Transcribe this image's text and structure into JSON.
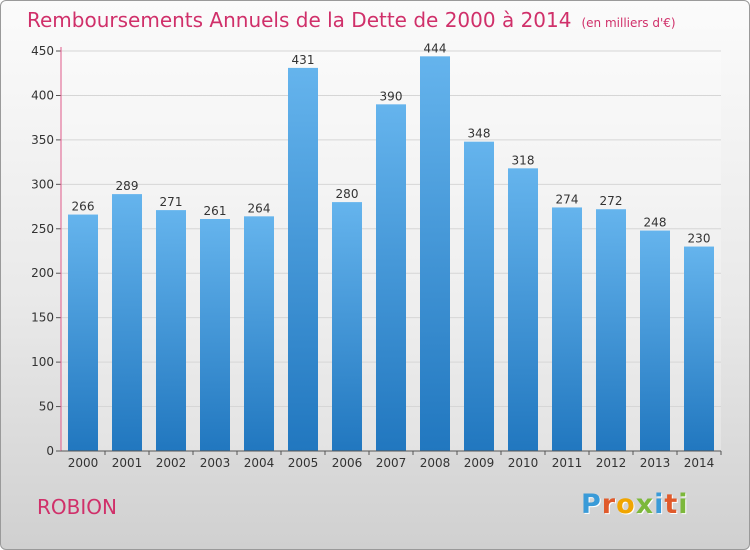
{
  "header": {
    "title": "Remboursements Annuels de la Dette de 2000 à 2014",
    "unit": "(en milliers d'€)"
  },
  "footer": {
    "commune": "ROBION",
    "logo_text": "Proxiti",
    "logo_colors": [
      "#3a9bd8",
      "#e05a2b",
      "#f0a500",
      "#7cb83a",
      "#3a9bd8",
      "#e05a2b",
      "#7cb83a"
    ]
  },
  "colors": {
    "title": "#d0306a",
    "bar_light": "#65b4ed",
    "bar_dark": "#2177bf",
    "axis": "#555555",
    "grid": "#d6d6d6",
    "axis_line": "#e05a8a"
  },
  "chart_data": {
    "type": "bar",
    "title": "Remboursements Annuels de la Dette de 2000 à 2014",
    "subtitle": "(en milliers d'€)",
    "xlabel": "",
    "ylabel": "",
    "categories": [
      "2000",
      "2001",
      "2002",
      "2003",
      "2004",
      "2005",
      "2006",
      "2007",
      "2008",
      "2009",
      "2010",
      "2011",
      "2012",
      "2013",
      "2014"
    ],
    "values": [
      266,
      289,
      271,
      261,
      264,
      431,
      280,
      390,
      444,
      348,
      318,
      274,
      272,
      248,
      230
    ],
    "ylim": [
      0,
      450
    ],
    "yticks": [
      0,
      50,
      100,
      150,
      200,
      250,
      300,
      350,
      400,
      450
    ],
    "grid": true,
    "legend": "none"
  }
}
